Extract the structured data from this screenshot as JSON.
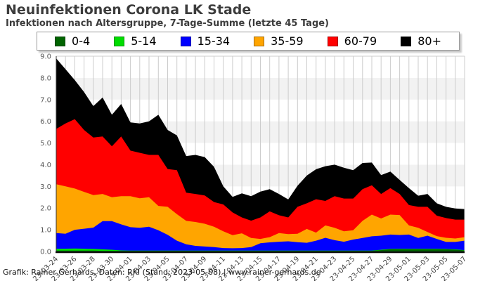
{
  "header": {
    "title": "Neuinfektionen Corona LK Stade",
    "subtitle": "Infektionen nach Altersgruppe, 7-Tage-Summe (letzte 45 Tage)"
  },
  "footer": {
    "credit": "Grafik: Rainer Gerhards, Daten: RKI (Stand: 2023-05-08) | www.rainer-gerhards.de"
  },
  "chart_data": {
    "type": "area",
    "stacked": true,
    "title": "Neuinfektionen Corona LK Stade",
    "subtitle": "Infektionen nach Altersgruppe, 7-Tage-Summe (letzte 45 Tage)",
    "legend_position": "top",
    "grid": "vertical line per day, alternating horizontal bands per 1.0 unit",
    "ylim": [
      0,
      9
    ],
    "y_ticks": [
      "0.0",
      "1.0",
      "2.0",
      "3.0",
      "4.0",
      "5.0",
      "6.0",
      "7.0",
      "8.0",
      "9.0"
    ],
    "x_tick_step": 2,
    "x": [
      "23-03-24",
      "23-03-25",
      "23-03-26",
      "23-03-27",
      "23-03-28",
      "23-03-29",
      "23-03-30",
      "23-03-31",
      "23-04-01",
      "23-04-02",
      "23-04-03",
      "23-04-04",
      "23-04-05",
      "23-04-06",
      "23-04-07",
      "23-04-08",
      "23-04-09",
      "23-04-10",
      "23-04-11",
      "23-04-12",
      "23-04-13",
      "23-04-14",
      "23-04-15",
      "23-04-16",
      "23-04-17",
      "23-04-18",
      "23-04-19",
      "23-04-20",
      "23-04-21",
      "23-04-22",
      "23-04-23",
      "23-04-24",
      "23-04-25",
      "23-04-26",
      "23-04-27",
      "23-04-28",
      "23-04-29",
      "23-04-30",
      "23-05-01",
      "23-05-02",
      "23-05-03",
      "23-05-04",
      "23-05-05",
      "23-05-06",
      "23-05-07"
    ],
    "series": [
      {
        "name": "0-4",
        "color": "#006400",
        "values": [
          0.04,
          0.04,
          0.04,
          0.04,
          0.04,
          0.03,
          0.03,
          0.03,
          0.03,
          0.03,
          0.03,
          0.03,
          0.03,
          0.03,
          0.03,
          0.03,
          0.03,
          0.03,
          0.03,
          0.03,
          0.03,
          0.03,
          0.03,
          0.03,
          0.03,
          0.03,
          0.03,
          0.03,
          0.03,
          0.03,
          0.03,
          0.03,
          0.03,
          0.03,
          0.03,
          0.06,
          0.1,
          0.11,
          0.11,
          0.11,
          0.11,
          0.11,
          0.1,
          0.08,
          0.05
        ]
      },
      {
        "name": "5-14",
        "color": "#00dd00",
        "values": [
          0.09,
          0.09,
          0.1,
          0.09,
          0.08,
          0.07,
          0.05,
          0.02,
          0.01,
          0.01,
          0.01,
          0.01,
          0.01,
          0.01,
          0.01,
          0.01,
          0.01,
          0.01,
          0.01,
          0.01,
          0.01,
          0.01,
          0.01,
          0.01,
          0.01,
          0.01,
          0.01,
          0.01,
          0.01,
          0.01,
          0.01,
          0.01,
          0.01,
          0.01,
          0.01,
          0.02,
          0.02,
          0.02,
          0.02,
          0.02,
          0.02,
          0.02,
          0.02,
          0.02,
          0.01
        ]
      },
      {
        "name": "15-34",
        "color": "#0000ff",
        "values": [
          0.72,
          0.69,
          0.86,
          0.92,
          0.98,
          1.3,
          1.32,
          1.2,
          1.08,
          1.05,
          1.1,
          0.94,
          0.73,
          0.46,
          0.29,
          0.22,
          0.19,
          0.16,
          0.12,
          0.11,
          0.12,
          0.16,
          0.34,
          0.38,
          0.41,
          0.43,
          0.39,
          0.36,
          0.46,
          0.59,
          0.48,
          0.41,
          0.51,
          0.58,
          0.66,
          0.65,
          0.66,
          0.63,
          0.65,
          0.49,
          0.6,
          0.45,
          0.32,
          0.34,
          0.44
        ]
      },
      {
        "name": "35-59",
        "color": "#ffa500",
        "values": [
          2.25,
          2.18,
          1.9,
          1.7,
          1.5,
          1.25,
          1.1,
          1.3,
          1.43,
          1.36,
          1.36,
          1.12,
          1.29,
          1.22,
          1.08,
          1.1,
          1.05,
          0.94,
          0.77,
          0.6,
          0.68,
          0.42,
          0.2,
          0.24,
          0.4,
          0.33,
          0.39,
          0.64,
          0.37,
          0.57,
          0.57,
          0.48,
          0.43,
          0.79,
          1.0,
          0.79,
          0.92,
          0.92,
          0.42,
          0.47,
          0.17,
          0.13,
          0.19,
          0.16,
          0.16
        ]
      },
      {
        "name": "60-79",
        "color": "#ff0000",
        "values": [
          2.55,
          2.9,
          3.2,
          2.85,
          2.65,
          2.65,
          2.35,
          2.75,
          2.1,
          2.1,
          1.95,
          2.35,
          1.74,
          2.03,
          1.3,
          1.29,
          1.3,
          1.14,
          1.24,
          1.05,
          0.73,
          0.8,
          0.99,
          1.19,
          0.82,
          0.77,
          1.24,
          1.18,
          1.54,
          1.13,
          1.46,
          1.51,
          1.46,
          1.46,
          1.35,
          1.13,
          1.22,
          0.97,
          0.94,
          0.97,
          1.16,
          0.94,
          0.91,
          0.87,
          0.81
        ]
      },
      {
        "name": "80+",
        "color": "#000000",
        "values": [
          3.25,
          2.5,
          1.8,
          1.75,
          1.45,
          1.8,
          1.45,
          1.5,
          1.3,
          1.35,
          1.55,
          1.85,
          1.8,
          1.6,
          1.69,
          1.8,
          1.77,
          1.62,
          0.83,
          0.72,
          1.11,
          1.13,
          1.19,
          1.02,
          0.98,
          0.83,
          0.97,
          1.28,
          1.38,
          1.6,
          1.45,
          1.42,
          1.31,
          1.21,
          1.05,
          0.87,
          0.76,
          0.65,
          0.78,
          0.51,
          0.59,
          0.57,
          0.52,
          0.51,
          0.48
        ]
      }
    ]
  },
  "style": {
    "band_light": "#ffffff",
    "band_dark": "#f2f2f2",
    "grid_color": "#cccccc",
    "axis_color": "#111111",
    "tick_label_color": "#555555"
  }
}
